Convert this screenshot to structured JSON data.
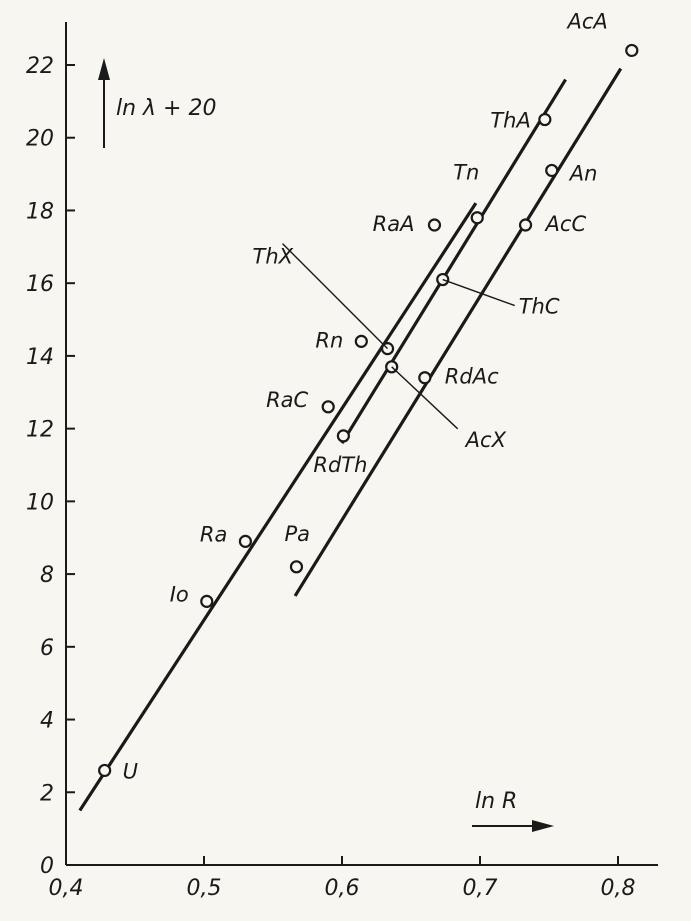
{
  "chart_data": {
    "type": "scatter",
    "title": "",
    "xlabel": "ln R",
    "ylabel": "ln λ + 20",
    "xlim": [
      0.4,
      0.82
    ],
    "ylim": [
      0,
      23
    ],
    "xticks": [
      {
        "v": 0.4,
        "label": "0,4"
      },
      {
        "v": 0.5,
        "label": "0,5"
      },
      {
        "v": 0.6,
        "label": "0,6"
      },
      {
        "v": 0.7,
        "label": "0,7"
      },
      {
        "v": 0.8,
        "label": "0,8"
      }
    ],
    "yticks": [
      {
        "v": 0,
        "label": "0"
      },
      {
        "v": 2,
        "label": "2"
      },
      {
        "v": 4,
        "label": "4"
      },
      {
        "v": 6,
        "label": "6"
      },
      {
        "v": 8,
        "label": "8"
      },
      {
        "v": 10,
        "label": "10"
      },
      {
        "v": 12,
        "label": "12"
      },
      {
        "v": 14,
        "label": "14"
      },
      {
        "v": 16,
        "label": "16"
      },
      {
        "v": 18,
        "label": "18"
      },
      {
        "v": 20,
        "label": "20"
      },
      {
        "v": 22,
        "label": "22"
      }
    ],
    "points": [
      {
        "label": "U",
        "x": 0.428,
        "y": 2.6
      },
      {
        "label": "Io",
        "x": 0.502,
        "y": 7.25
      },
      {
        "label": "Ra",
        "x": 0.53,
        "y": 8.9
      },
      {
        "label": "RaC",
        "x": 0.59,
        "y": 12.6
      },
      {
        "label": "Rn",
        "x": 0.614,
        "y": 14.4
      },
      {
        "label": "RaA",
        "x": 0.667,
        "y": 17.6
      },
      {
        "label": "Pa",
        "x": 0.567,
        "y": 8.2
      },
      {
        "label": "RdTh",
        "x": 0.601,
        "y": 11.8
      },
      {
        "label": "ThX",
        "x": 0.633,
        "y": 14.2
      },
      {
        "label": "Tn",
        "x": 0.698,
        "y": 17.8
      },
      {
        "label": "ThA",
        "x": 0.747,
        "y": 20.5
      },
      {
        "label": "AcX",
        "x": 0.636,
        "y": 13.7
      },
      {
        "label": "ThC",
        "x": 0.673,
        "y": 16.1
      },
      {
        "label": "RdAc",
        "x": 0.66,
        "y": 13.4
      },
      {
        "label": "AcC",
        "x": 0.733,
        "y": 17.6
      },
      {
        "label": "An",
        "x": 0.752,
        "y": 19.1
      },
      {
        "label": "AcA",
        "x": 0.81,
        "y": 22.4
      }
    ],
    "series": [
      {
        "x": [
          0.41,
          0.697
        ],
        "y": [
          1.5,
          18.2
        ]
      },
      {
        "x": [
          0.6,
          0.762
        ],
        "y": [
          11.6,
          21.6
        ]
      },
      {
        "x": [
          0.566,
          0.802
        ],
        "y": [
          7.4,
          21.9
        ]
      }
    ]
  }
}
